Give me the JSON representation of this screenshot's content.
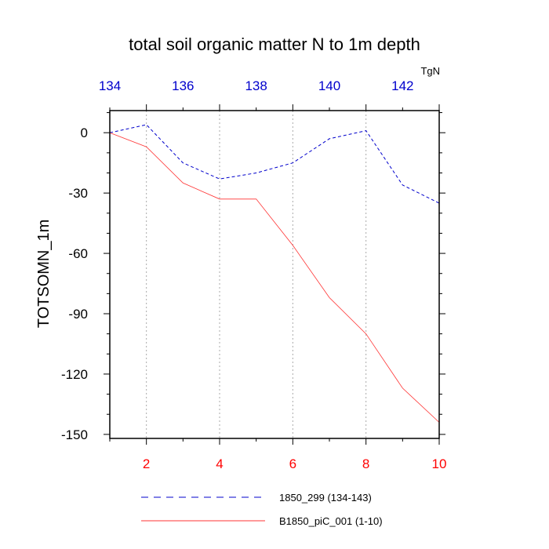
{
  "chart_data": {
    "type": "line",
    "title": "total soil organic matter N to 1m depth",
    "ylabel": "TOTSOMN_1m",
    "top_axis_label": "TgN",
    "xlim_bottom": [
      1,
      10
    ],
    "xlim_top": [
      134,
      143
    ],
    "ylim": [
      -152,
      11
    ],
    "bottom_ticks": [
      2,
      4,
      6,
      8,
      10
    ],
    "top_ticks": [
      134,
      136,
      138,
      140,
      142
    ],
    "y_ticks": [
      0,
      -30,
      -60,
      -90,
      -120,
      -150
    ],
    "y_tick_labels": [
      "0",
      "-30",
      "-60",
      "-90",
      "-120",
      "-150"
    ],
    "series": [
      {
        "name": "1850_299 (134-143)",
        "axis": "top",
        "color": "#0000cc",
        "style": "dashed",
        "x": [
          134,
          135,
          136,
          137,
          138,
          139,
          140,
          141,
          142,
          143
        ],
        "y": [
          0,
          4,
          -15,
          -23,
          -20,
          -15,
          -3,
          1,
          -26,
          -35
        ]
      },
      {
        "name": "B1850_piC_001 (1-10)",
        "axis": "bottom",
        "color": "#ff3333",
        "style": "solid",
        "x": [
          1,
          2,
          3,
          4,
          5,
          6,
          7,
          8,
          9,
          10
        ],
        "y": [
          0,
          -7,
          -25,
          -33,
          -33,
          -56,
          -82,
          -100,
          -127,
          -144
        ]
      }
    ],
    "colors": {
      "bottom_axis_text": "#ff0000",
      "top_axis_text": "#0000cc",
      "grid": "#aaaaaa",
      "frame": "#000000"
    }
  }
}
